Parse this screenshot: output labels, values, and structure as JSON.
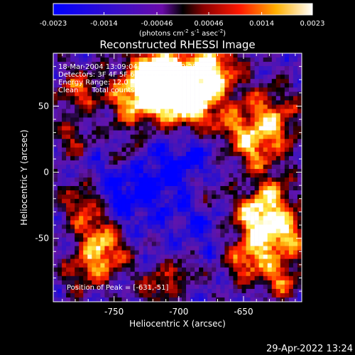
{
  "colorbar": {
    "tick_labels": [
      "-0.0023",
      "-0.0014",
      "-0.00046",
      "0.00046",
      "0.0014",
      "0.0023"
    ],
    "tick_values": [
      -0.0023,
      -0.0014,
      -0.00046,
      0.00046,
      0.0014,
      0.0023
    ],
    "range": [
      -0.0023,
      0.0023
    ],
    "unit_parts": [
      "(photons cm",
      "-2",
      " s",
      "-1",
      " asec",
      "-2",
      ")"
    ],
    "colormap": "rainbow (blue-purple-red-orange-yellow-white)"
  },
  "image": {
    "title": "Reconstructed RHESSI Image",
    "xlabel": "Heliocentric X (arcsec)",
    "ylabel": "Heliocentric Y (arcsec)",
    "x_ticks": [
      "-750",
      "-700",
      "-650"
    ],
    "y_ticks": [
      "50",
      "0",
      "-50"
    ],
    "x_tick_values": [
      -750,
      -700,
      -650
    ],
    "y_tick_values": [
      50,
      0,
      -50
    ],
    "xlim": [
      -797,
      -605
    ],
    "ylim": [
      -98,
      90
    ],
    "annotations": [
      "18-Mar-2004 13:09:04.000 to 13:09:28.000",
      "Detectors: 3F 4F 5F 6F 7F 8F, Att 0",
      "Energy Range: 12.0 - 25.0 keV",
      "Clean      Total counts: 947"
    ],
    "peak_label": "Position of Peak = [-631,-51]",
    "peak_position": [
      -631,
      -51
    ]
  },
  "timestamp": "29-Apr-2022 13:24"
}
